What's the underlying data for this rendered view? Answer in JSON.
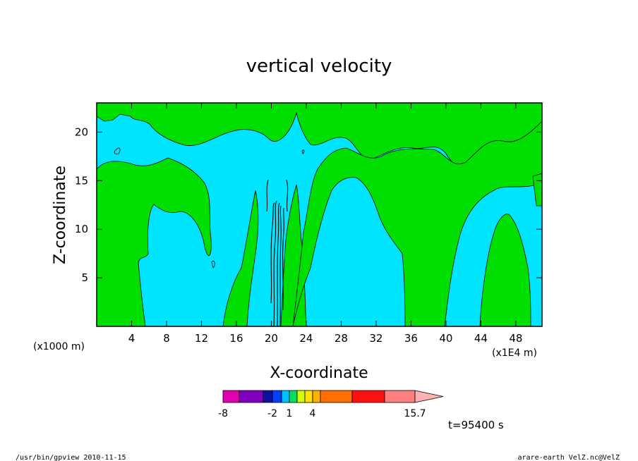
{
  "chart_data": {
    "type": "heatmap",
    "title": "vertical velocity",
    "xlabel": "X-coordinate",
    "ylabel": "Z-coordinate",
    "x_unit_left": "(x1000 m)",
    "x_unit_right": "(x1E4 m)",
    "xlim": [
      0,
      51
    ],
    "ylim": [
      0,
      23
    ],
    "x_ticks": [
      4,
      8,
      12,
      16,
      20,
      24,
      28,
      32,
      36,
      40,
      44,
      48
    ],
    "y_ticks": [
      5,
      10,
      15,
      20
    ],
    "time_label": "t=95400 s",
    "colorbar": {
      "colors": [
        "#e000b0",
        "#8000c0",
        "#1010a0",
        "#0040ff",
        "#00c0ff",
        "#00e060",
        "#d0ff00",
        "#ffe000",
        "#ffb000",
        "#ff7000",
        "#ff1010",
        "#ff8080",
        "#ffb0b0"
      ],
      "tick_labels": [
        "-8",
        "-2",
        "1",
        "4",
        "15.7"
      ],
      "max": 15.7
    },
    "field_colors": {
      "low": "#00e5ff",
      "high": "#00e000",
      "contour": "#000000"
    }
  },
  "footer": {
    "left": "/usr/bin/gpview  2010-11-15",
    "right": "arare-earth_VelZ.nc@VelZ"
  }
}
